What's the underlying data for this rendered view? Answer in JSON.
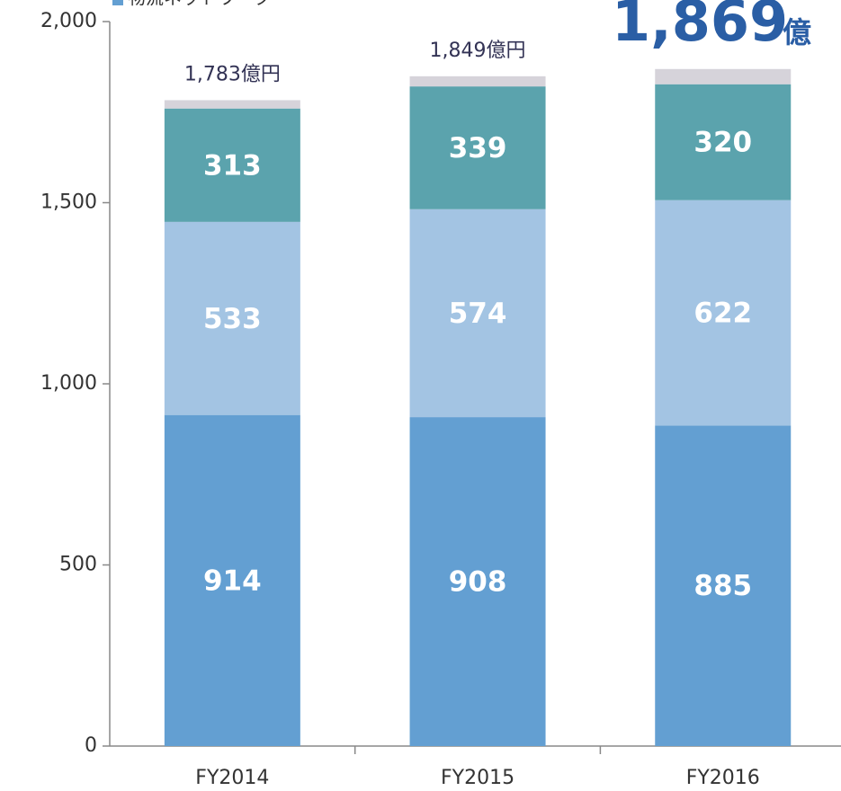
{
  "chart_data": {
    "type": "stacked_bar",
    "categories": [
      "FY2014",
      "FY2015",
      "FY2016"
    ],
    "series": [
      {
        "name": "物流ネットワーク",
        "color": "#639fd2",
        "values": [
          914,
          908,
          885
        ]
      },
      {
        "color": "#a3c4e3",
        "values": [
          533,
          574,
          622
        ]
      },
      {
        "color": "#5ba3ad",
        "values": [
          313,
          339,
          320
        ]
      },
      {
        "color": "#d6d3da",
        "values": [
          23,
          28,
          42
        ]
      }
    ],
    "value_labels_series": [
      0,
      1,
      2
    ],
    "total_labels": [
      "1,783億円",
      "1,849億円"
    ],
    "highlight": {
      "text": "1,869",
      "unit": "億"
    },
    "ylim": [
      0,
      2000
    ],
    "yticks": [
      0,
      {
        "value": 500,
        "label": "500"
      },
      {
        "value": 1000,
        "label": "1,000"
      },
      {
        "value": 1500,
        "label": "1,500"
      },
      {
        "value": 2000,
        "label": "2,000"
      }
    ]
  }
}
